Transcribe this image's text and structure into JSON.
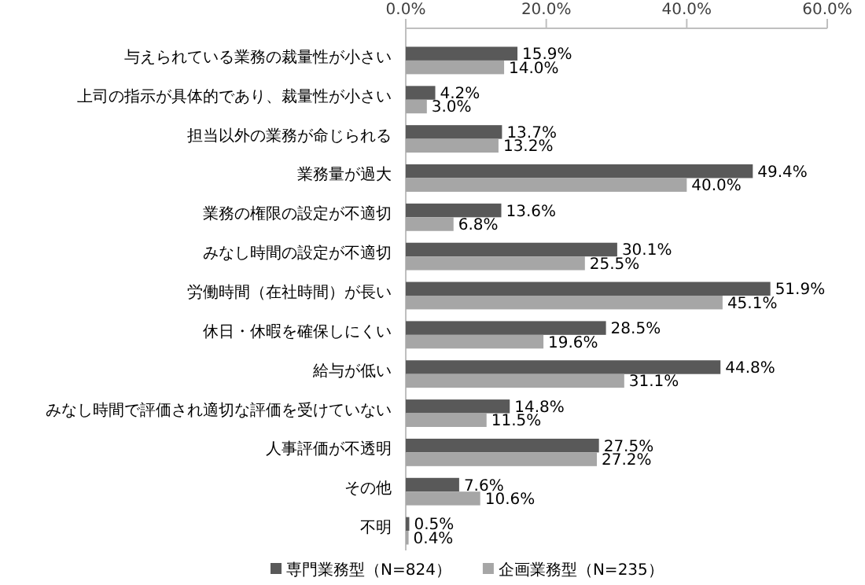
{
  "chart_data": {
    "type": "bar",
    "orientation": "horizontal",
    "categories": [
      "与えられている業務の裁量性が小さい",
      "上司の指示が具体的であり、裁量性が小さい",
      "担当以外の業務が命じられる",
      "業務量が過大",
      "業務の権限の設定が不適切",
      "みなし時間の設定が不適切",
      "労働時間（在社時間）が長い",
      "休日・休暇を確保しにくい",
      "給与が低い",
      "みなし時間で評価され適切な評価を受けていない",
      "人事評価が不透明",
      "その他",
      "不明"
    ],
    "series": [
      {
        "name": "専門業務型（N=824）",
        "color": "#595959",
        "values": [
          15.9,
          4.2,
          13.7,
          49.4,
          13.6,
          30.1,
          51.9,
          28.5,
          44.8,
          14.8,
          27.5,
          7.6,
          0.5
        ],
        "value_labels": [
          "15.9%",
          "4.2%",
          "13.7%",
          "49.4%",
          "13.6%",
          "30.1%",
          "51.9%",
          "28.5%",
          "44.8%",
          "14.8%",
          "27.5%",
          "7.6%",
          "0.5%"
        ]
      },
      {
        "name": "企画業務型（N=235）",
        "color": "#a6a6a6",
        "values": [
          14.0,
          3.0,
          13.2,
          40.0,
          6.8,
          25.5,
          45.1,
          19.6,
          31.1,
          11.5,
          27.2,
          10.6,
          0.4
        ],
        "value_labels": [
          "14.0%",
          "3.0%",
          "13.2%",
          "40.0%",
          "6.8%",
          "25.5%",
          "45.1%",
          "19.6%",
          "31.1%",
          "11.5%",
          "27.2%",
          "10.6%",
          "0.4%"
        ]
      }
    ],
    "xlim": [
      0,
      60
    ],
    "xticks": [
      {
        "value": 0,
        "label": "0.0%"
      },
      {
        "value": 20,
        "label": "20.0%"
      },
      {
        "value": 40,
        "label": "40.0%"
      },
      {
        "value": 60,
        "label": "60.0%"
      }
    ],
    "legend": "bottom"
  }
}
